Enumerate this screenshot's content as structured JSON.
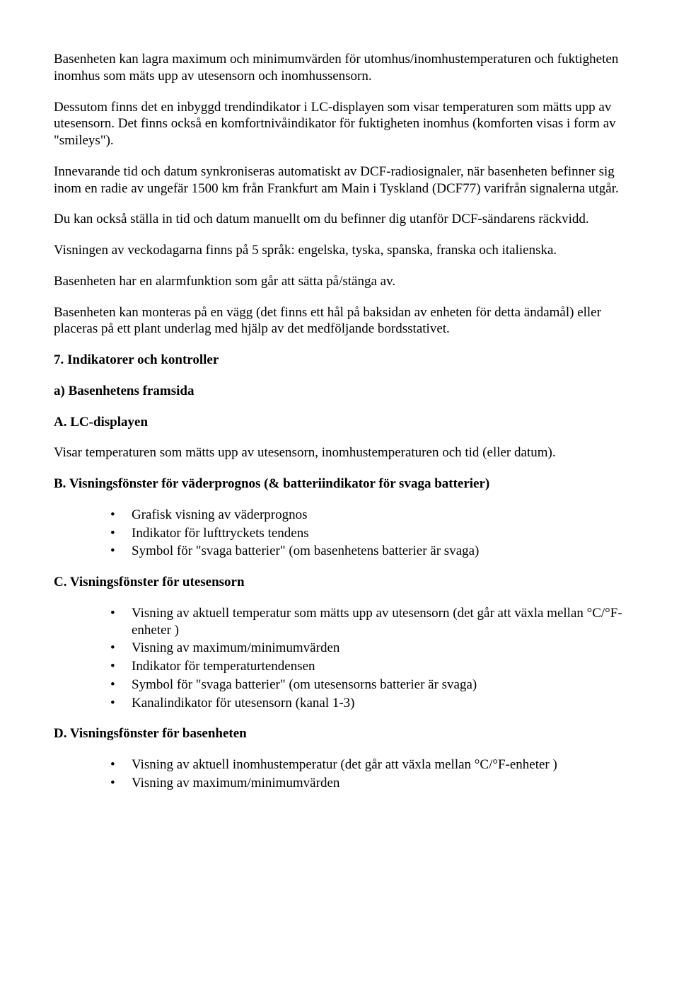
{
  "paragraphs": {
    "p1": "Basenheten kan lagra maximum och minimumvärden för utomhus/inomhustemperaturen och fuktigheten inomhus som mäts upp av utesensorn och inomhussensorn.",
    "p2": "Dessutom finns det en inbyggd trendindikator i LC-displayen som visar temperaturen som mätts upp av utesensorn. Det finns också en komfortnivåindikator för fuktigheten inomhus (komforten visas i form av \"smileys\").",
    "p3": "Innevarande tid och datum synkroniseras automatiskt av DCF-radiosignaler, när basenheten befinner sig inom en radie av ungefär 1500 km från Frankfurt am Main i Tyskland (DCF77) varifrån signalerna utgår.",
    "p4": "Du kan också ställa in tid och datum manuellt om du befinner dig utanför DCF-sändarens räckvidd.",
    "p5": "Visningen av veckodagarna finns på 5 språk: engelska, tyska, spanska, franska och italienska.",
    "p6": "Basenheten har en alarmfunktion som går att sätta på/stänga av.",
    "p7": "Basenheten kan monteras på en vägg (det finns ett hål på baksidan av enheten för detta ändamål) eller placeras på ett plant underlag med hjälp av det medföljande bordsstativet."
  },
  "headings": {
    "h7": "7. Indikatorer och kontroller",
    "ha": "a) Basenhetens framsida",
    "hA": "A. LC-displayen",
    "hA_body": "Visar temperaturen som mätts upp av utesensorn, inomhustemperaturen och tid (eller datum).",
    "hB": "B. Visningsfönster för väderprognos (& batteriindikator för svaga batterier)",
    "hC": "C. Visningsfönster för utesensorn",
    "hD": "D. Visningsfönster för basenheten"
  },
  "listB": [
    "Grafisk visning av väderprognos",
    "Indikator för lufttryckets tendens",
    "Symbol för \"svaga batterier\" (om basenhetens batterier är svaga)"
  ],
  "listC": [
    "Visning av aktuell temperatur som mätts upp av utesensorn (det går att växla mellan °C/°F-enheter )",
    "Visning av maximum/minimumvärden",
    "Indikator för temperaturtendensen",
    "Symbol för \"svaga batterier\" (om utesensorns batterier är svaga)",
    "Kanalindikator för utesensorn (kanal 1-3)"
  ],
  "listD": [
    "Visning av aktuell inomhustemperatur (det går att växla mellan °C/°F-enheter )",
    "Visning av maximum/minimumvärden"
  ]
}
